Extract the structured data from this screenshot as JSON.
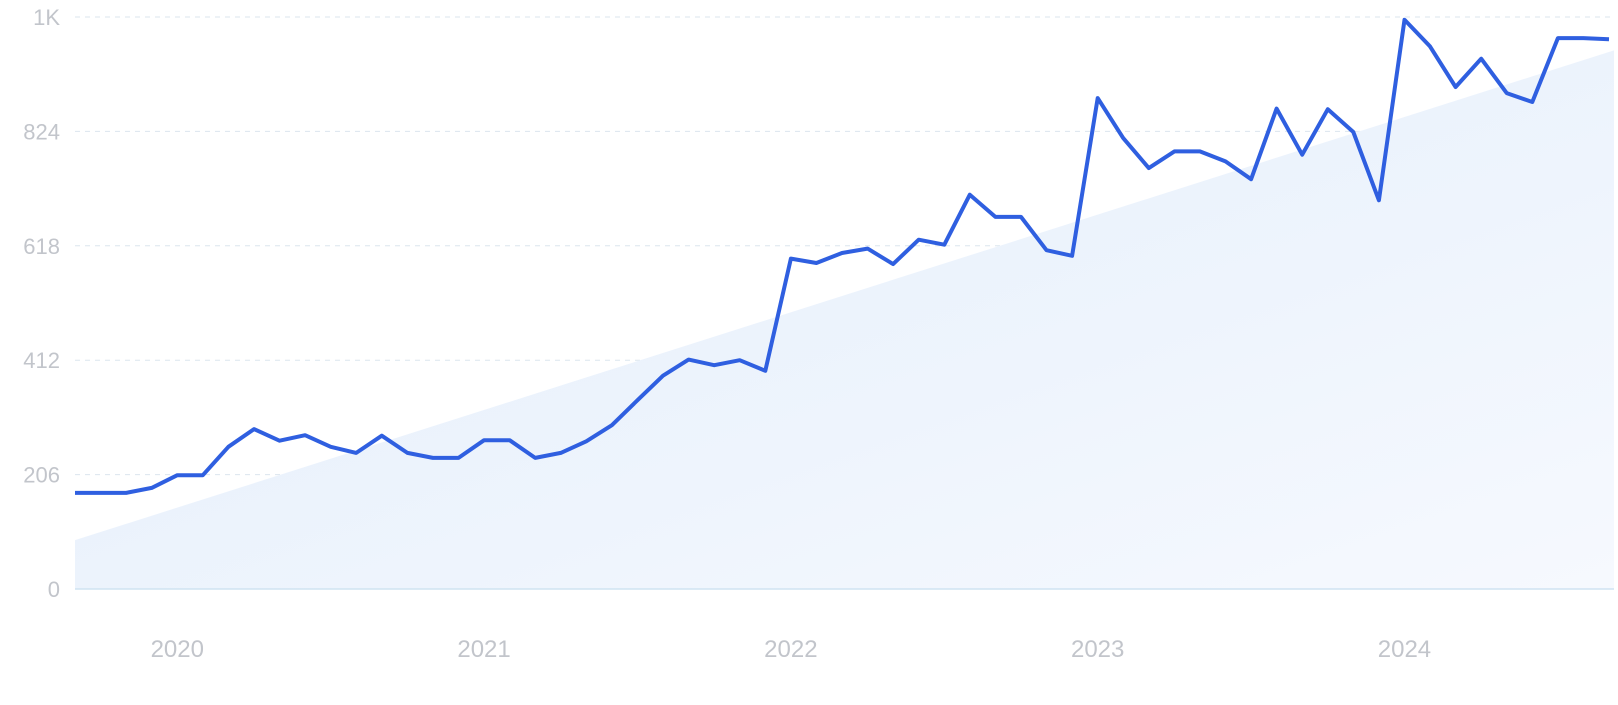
{
  "chart_data": {
    "type": "line",
    "title": "",
    "xlabel": "",
    "ylabel": "",
    "y_ticks": [
      {
        "value": 0,
        "label": "0"
      },
      {
        "value": 206,
        "label": "206"
      },
      {
        "value": 412,
        "label": "412"
      },
      {
        "value": 618,
        "label": "618"
      },
      {
        "value": 824,
        "label": "824"
      },
      {
        "value": 1030,
        "label": "1K"
      }
    ],
    "x_ticks": [
      "2020",
      "2021",
      "2022",
      "2023",
      "2024"
    ],
    "ylim": [
      0,
      1030
    ],
    "xlim": [
      "2019-09",
      "2024-09"
    ],
    "grid": true,
    "legend": "none",
    "series": [
      {
        "type": "line",
        "x": [
          "2019-09",
          "2019-10",
          "2019-11",
          "2019-12",
          "2020-01",
          "2020-02",
          "2020-03",
          "2020-04",
          "2020-05",
          "2020-06",
          "2020-07",
          "2020-08",
          "2020-09",
          "2020-10",
          "2020-11",
          "2020-12",
          "2021-01",
          "2021-02",
          "2021-03",
          "2021-04",
          "2021-05",
          "2021-06",
          "2021-07",
          "2021-08",
          "2021-09",
          "2021-10",
          "2021-11",
          "2021-12",
          "2022-01",
          "2022-02",
          "2022-03",
          "2022-04",
          "2022-05",
          "2022-06",
          "2022-07",
          "2022-08",
          "2022-09",
          "2022-10",
          "2022-11",
          "2022-12",
          "2023-01",
          "2023-02",
          "2023-03",
          "2023-04",
          "2023-05",
          "2023-06",
          "2023-07",
          "2023-08",
          "2023-09",
          "2023-10",
          "2023-11",
          "2023-12",
          "2024-01",
          "2024-02",
          "2024-03",
          "2024-04",
          "2024-05",
          "2024-06",
          "2024-07",
          "2024-08",
          "2024-09"
        ],
        "values": [
          173,
          173,
          173,
          182,
          205,
          205,
          256,
          288,
          267,
          277,
          256,
          245,
          276,
          245,
          236,
          236,
          268,
          268,
          236,
          245,
          266,
          295,
          340,
          384,
          413,
          403,
          412,
          393,
          595,
          587,
          605,
          613,
          585,
          629,
          620,
          710,
          670,
          670,
          610,
          600,
          884,
          812,
          758,
          788,
          788,
          770,
          738,
          865,
          782,
          864,
          823,
          700,
          1025,
          977,
          904,
          955,
          893,
          877,
          992,
          992,
          990
        ]
      },
      {
        "type": "area",
        "x": [
          "2019-09",
          "2024-09"
        ],
        "values": [
          88,
          970
        ]
      }
    ]
  },
  "colors": {
    "line": "#2f5fe0",
    "area_light": "#f6f9fe",
    "area_dark": "#e2edfb",
    "grid": "#dbe5ee",
    "tick_label": "#c2c5cb",
    "baseline": "#cfe3f2"
  }
}
